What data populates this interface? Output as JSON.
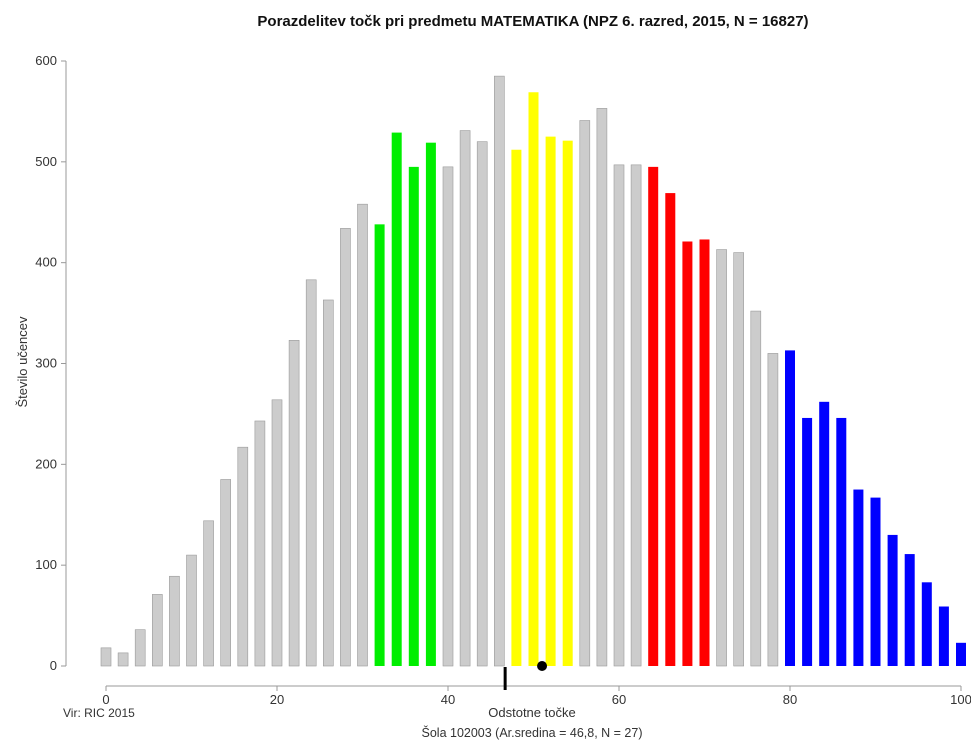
{
  "chart_data": {
    "type": "bar",
    "title": "Porazdelitev točk pri predmetu MATEMATIKA (NPZ 6. razred, 2015, N = 16827)",
    "xlabel": "Odstotne točke",
    "ylabel": "Število učencev",
    "xlim": [
      0,
      100
    ],
    "ylim": [
      0,
      600
    ],
    "x_ticks": [
      0,
      20,
      40,
      60,
      80,
      100
    ],
    "y_ticks": [
      0,
      100,
      200,
      300,
      400,
      500,
      600
    ],
    "x": [
      0,
      2,
      4,
      6,
      8,
      10,
      12,
      14,
      16,
      18,
      20,
      22,
      24,
      26,
      28,
      30,
      32,
      34,
      36,
      38,
      40,
      42,
      44,
      46,
      48,
      50,
      52,
      54,
      56,
      58,
      60,
      62,
      64,
      66,
      68,
      70,
      72,
      74,
      76,
      78,
      80,
      82,
      84,
      86,
      88,
      90,
      92,
      94,
      96,
      98,
      100
    ],
    "values": [
      18,
      13,
      36,
      71,
      89,
      110,
      144,
      185,
      217,
      243,
      264,
      323,
      383,
      363,
      434,
      458,
      438,
      529,
      495,
      519,
      495,
      531,
      520,
      585,
      512,
      569,
      525,
      521,
      541,
      553,
      497,
      497,
      495,
      469,
      421,
      423,
      413,
      410,
      352,
      310,
      313,
      246,
      262,
      246,
      175,
      167,
      130,
      111,
      83,
      59,
      23
    ],
    "colors": [
      "#cccccc",
      "#cccccc",
      "#cccccc",
      "#cccccc",
      "#cccccc",
      "#cccccc",
      "#cccccc",
      "#cccccc",
      "#cccccc",
      "#cccccc",
      "#cccccc",
      "#cccccc",
      "#cccccc",
      "#cccccc",
      "#cccccc",
      "#cccccc",
      "#00ee00",
      "#00ee00",
      "#00ee00",
      "#00ee00",
      "#cccccc",
      "#cccccc",
      "#cccccc",
      "#cccccc",
      "#ffff00",
      "#ffff00",
      "#ffff00",
      "#ffff00",
      "#cccccc",
      "#cccccc",
      "#cccccc",
      "#cccccc",
      "#ff0000",
      "#ff0000",
      "#ff0000",
      "#ff0000",
      "#cccccc",
      "#cccccc",
      "#cccccc",
      "#cccccc",
      "#0000ff",
      "#0000ff",
      "#0000ff",
      "#0000ff",
      "#0000ff",
      "#0000ff",
      "#0000ff",
      "#0000ff",
      "#0000ff",
      "#0000ff",
      "#0000ff"
    ],
    "school_mean": 46.8,
    "marker_point_x": 51,
    "source_note": "Vir: RIC 2015",
    "school_note": "Šola 102003 (Ar.sredina = 46,8, N = 27)",
    "grid": false
  }
}
